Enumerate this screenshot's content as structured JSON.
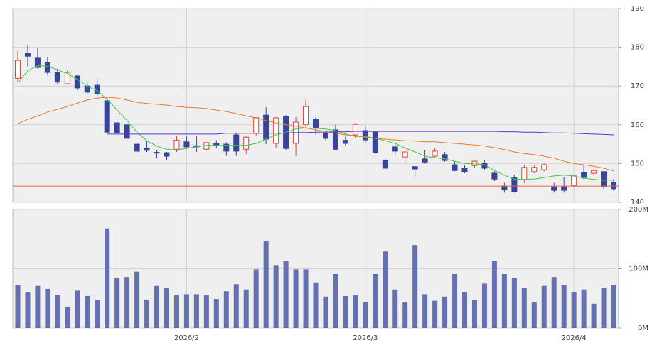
{
  "chart_data": [
    {
      "type": "candlestick",
      "open": [
        172,
        178.5,
        177.2,
        176,
        173.5,
        170.6,
        172.6,
        170,
        170.2,
        166.2,
        160.5,
        160,
        155,
        153.9,
        152.9,
        152.8,
        153.7,
        155.6,
        154.6,
        153.7,
        155.2,
        155,
        157.4,
        153.7,
        157.8,
        162.5,
        155.2,
        162.2,
        155.2,
        160.1,
        161.4,
        157.8,
        158.7,
        156,
        157.4,
        158.5,
        158.1,
        150.8,
        154.3,
        151.7,
        149.2,
        151.2,
        151.9,
        152.3,
        149.7,
        148.8,
        149.5,
        150,
        147.5,
        144.2,
        146.4,
        145.9,
        147.9,
        148.4,
        144,
        144,
        144.4,
        147.7,
        147.5,
        147.9,
        145.1
      ],
      "high": [
        179,
        180.5,
        179.7,
        177.5,
        174.5,
        174,
        173,
        171,
        172,
        166.5,
        161,
        160.5,
        155.5,
        156,
        153.5,
        153,
        157,
        157,
        157,
        155.5,
        156,
        155.5,
        158,
        157,
        162,
        164.5,
        162,
        162.5,
        162,
        166.5,
        162,
        158.5,
        160,
        157,
        160.5,
        159.5,
        158.5,
        151.5,
        155,
        153.5,
        149.5,
        153.5,
        154,
        153,
        150.5,
        149.5,
        151,
        151,
        148,
        145,
        147,
        149.5,
        149.5,
        150,
        145,
        146.5,
        147,
        149.5,
        148.5,
        148,
        146
      ],
      "low": [
        171,
        175,
        174.5,
        173,
        170.5,
        170.5,
        169,
        168,
        167.5,
        157.5,
        157,
        156,
        152.5,
        153,
        151.3,
        151,
        153,
        154,
        153,
        153.5,
        154,
        152,
        152,
        152.5,
        157,
        155,
        154,
        153.5,
        152,
        159,
        157.5,
        156,
        153.5,
        154.5,
        156.5,
        155.5,
        152.5,
        148.5,
        152,
        150,
        146.5,
        150,
        151.5,
        150.5,
        148,
        147.5,
        149,
        148.5,
        145.5,
        142.5,
        142.5,
        145,
        147.5,
        148,
        142.5,
        142.5,
        144,
        146,
        147,
        143.5,
        143
      ],
      "close": [
        176.6,
        177.7,
        174.8,
        173.5,
        171,
        173.5,
        169.5,
        168.4,
        168,
        158.1,
        158,
        156.5,
        153.2,
        153.4,
        152.7,
        151.9,
        156,
        154.3,
        154.3,
        155.4,
        154.7,
        153.2,
        153.2,
        156.8,
        161.8,
        156.3,
        161.8,
        153.9,
        160.7,
        164.7,
        159.2,
        156.5,
        153.7,
        155.2,
        160.1,
        156.1,
        152.8,
        148.8,
        153.2,
        153,
        148.6,
        150.4,
        153.2,
        150.8,
        148.2,
        147.9,
        150.6,
        148.8,
        146,
        143.3,
        142.7,
        149,
        149,
        149.7,
        143.1,
        143.1,
        146.8,
        146.4,
        148.2,
        144,
        143.5
      ],
      "up_color": "#e5403a",
      "down_color": "#36459a",
      "series": [
        {
          "color": "#3ccc3c",
          "values": [
            170.8,
            173.9,
            175.3,
            175.1,
            174.2,
            173.2,
            171.7,
            169.9,
            168.8,
            166.6,
            163.8,
            161.1,
            158.1,
            155.9,
            154.5,
            153.7,
            153.5,
            153.9,
            154.3,
            154.7,
            154.7,
            154.7,
            154.7,
            154.7,
            155.2,
            156.3,
            157.4,
            158.1,
            158.9,
            159.2,
            159.1,
            158.9,
            158.5,
            157.6,
            157,
            157,
            156.5,
            155.9,
            155.2,
            154,
            153,
            151.9,
            151.5,
            151.2,
            150.6,
            150,
            149.9,
            149.7,
            148.2,
            147,
            146,
            145.9,
            146,
            146.4,
            146.8,
            147,
            146.8,
            146.2,
            145.9,
            145.7,
            145.7
          ]
        },
        {
          "color": "#f07a30",
          "values": [
            160.3,
            161.4,
            162.3,
            163.3,
            164,
            164.7,
            165.6,
            166.4,
            166.9,
            167.1,
            166.9,
            166.4,
            165.8,
            165.5,
            165.3,
            165.1,
            164.7,
            164.5,
            164.4,
            164.2,
            163.8,
            163.4,
            162.9,
            162.3,
            161.8,
            161.1,
            160.5,
            160,
            159.6,
            159.2,
            158.7,
            158.3,
            157.8,
            157.4,
            157.2,
            156.8,
            156.5,
            156.3,
            156.1,
            155.9,
            155.8,
            155.6,
            155.6,
            155.4,
            155.2,
            155,
            154.8,
            154.5,
            154.1,
            153.6,
            153,
            152.6,
            152.3,
            151.9,
            151.4,
            150.6,
            150,
            149.7,
            149.3,
            148.8,
            148.1
          ]
        },
        {
          "color": "#5a3cc8",
          "values": [
            null,
            null,
            null,
            null,
            null,
            null,
            null,
            null,
            null,
            157.6,
            157.6,
            157.6,
            157.6,
            157.6,
            157.6,
            157.6,
            157.6,
            157.6,
            157.6,
            157.6,
            157.6,
            157.8,
            157.8,
            157.8,
            157.8,
            157.8,
            157.8,
            157.9,
            158,
            158,
            158.1,
            158.1,
            158.2,
            158.2,
            158.3,
            158.3,
            158.3,
            158.3,
            158.3,
            158.3,
            158.3,
            158.3,
            158.3,
            158.3,
            158.3,
            158.3,
            158.3,
            158.3,
            158.3,
            158.2,
            158.2,
            158.1,
            158.1,
            158,
            157.9,
            157.9,
            157.8,
            157.7,
            157.6,
            157.5,
            157.4
          ]
        }
      ],
      "reference_line": {
        "value": 144.2,
        "color": "#e8664a"
      },
      "ylim": [
        140,
        190
      ],
      "yticks": [
        140,
        150,
        160,
        170,
        180,
        190
      ],
      "grid": true
    },
    {
      "type": "bar",
      "categories": [
        null,
        null,
        null,
        null,
        null,
        null,
        null,
        null,
        null,
        null,
        null,
        null,
        null,
        null,
        null,
        null,
        null,
        "2026/2",
        null,
        null,
        null,
        null,
        null,
        null,
        null,
        null,
        null,
        null,
        null,
        null,
        null,
        null,
        null,
        null,
        null,
        "2026/3",
        null,
        null,
        null,
        null,
        null,
        null,
        null,
        null,
        null,
        null,
        null,
        null,
        null,
        null,
        null,
        null,
        null,
        null,
        null,
        null,
        "2026/4",
        null,
        null,
        null,
        null
      ],
      "values": [
        73,
        61,
        71,
        66,
        56,
        36,
        63,
        54,
        47,
        168,
        84,
        86,
        95,
        48,
        71,
        67,
        55,
        57,
        57,
        55,
        49,
        62,
        74,
        65,
        99,
        146,
        105,
        113,
        99,
        99,
        77,
        53,
        91,
        54,
        55,
        44,
        91,
        129,
        65,
        43,
        140,
        57,
        46,
        53,
        91,
        60,
        47,
        75,
        113,
        91,
        84,
        68,
        43,
        71,
        86,
        72,
        61,
        65,
        41,
        68,
        73
      ],
      "color": "#6570b0",
      "ylim": [
        0,
        200
      ],
      "yticks": [
        {
          "value": 0,
          "label": "0M"
        },
        {
          "value": 100,
          "label": "100M"
        },
        {
          "value": 200,
          "label": "200M"
        }
      ],
      "grid": true
    }
  ]
}
